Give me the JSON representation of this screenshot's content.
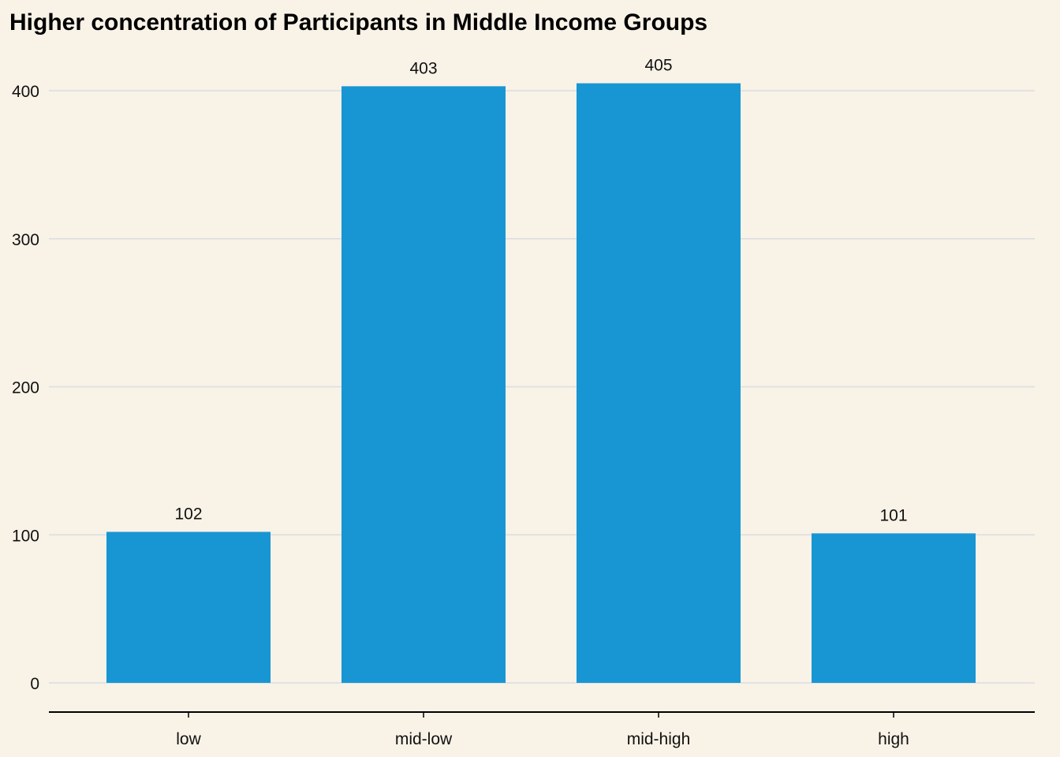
{
  "chart_data": {
    "type": "bar",
    "title": "Higher concentration of Participants in Middle Income Groups",
    "xlabel": "",
    "ylabel": "",
    "categories": [
      "low",
      "mid-low",
      "mid-high",
      "high"
    ],
    "values": [
      102,
      403,
      405,
      101
    ],
    "data_labels": [
      "102",
      "403",
      "405",
      "101"
    ],
    "ylim": [
      0,
      420
    ],
    "yticks": [
      0,
      100,
      200,
      300,
      400
    ],
    "grid": "horizontal",
    "legend": "none",
    "colors": {
      "bar": "#1896d3",
      "background": "#f9f2e7",
      "grid": "#d9dde0",
      "axis": "#000000"
    }
  }
}
